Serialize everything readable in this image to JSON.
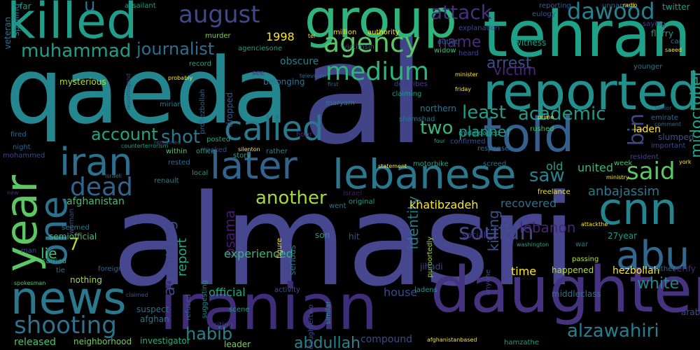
{
  "words": [
    "almasri",
    "al",
    "qaeda",
    "iranian",
    "daughter",
    "tehran",
    "reported",
    "group",
    "told",
    "killed",
    "lebanese",
    "later",
    "news",
    "cnn",
    "year",
    "iran",
    "abu",
    "one",
    "shooting",
    "medium",
    "called",
    "agency",
    "dead",
    "said",
    "august",
    "dawood",
    "soufan",
    "alzawahiri",
    "muhammad",
    "journalist",
    "academic",
    "least",
    "bin",
    "account",
    "shot",
    "another",
    "attack",
    "midoctober",
    "arrest",
    "victim",
    "habib",
    "abdullah",
    "white",
    "two",
    "planner",
    "according",
    "killing",
    "lebanon",
    "identity",
    "osama",
    "report",
    "saw",
    "recovered",
    "united",
    "anbajassim",
    "khatibzadeh",
    "official",
    "house",
    "experienced",
    "afghanistan",
    "time",
    "name",
    "lie",
    "7",
    "1998",
    "laden",
    "old",
    "hezbollah",
    "compound",
    "released",
    "neighborhood",
    "investigator",
    "leader",
    "far",
    "u",
    "assailant",
    "mysterious",
    "reporting",
    "spelling",
    "twitter",
    "murder",
    "million",
    "authority",
    "explanation",
    "witness",
    "flurry",
    "agenciesone",
    "obscure",
    "victimsin",
    "widow",
    "record",
    "heard",
    "younger",
    "unnamed",
    "eulogy",
    "saying",
    "outlet",
    "car",
    "saeed",
    "belonging",
    "dropped",
    "prohezbollah",
    "first",
    "maryam",
    "describes",
    "friday",
    "claiming",
    "northern",
    "shamshad",
    "prime",
    "senior",
    "emirate",
    "comment",
    "rushed",
    "confirmed",
    "middleaged",
    "hour",
    "four",
    "response",
    "statement",
    "motorbike",
    "screed",
    "important",
    "resident",
    "week",
    "ministry",
    "york",
    "freelance",
    "passing",
    "renault",
    "asked",
    "posted",
    "rather",
    "story",
    "silenton",
    "within",
    "office",
    "counterterrorism",
    "fired",
    "night",
    "mohammed",
    "rested",
    "local",
    "israel",
    "israeli",
    "went",
    "original",
    "new",
    "woman",
    "seemed",
    "semiofficial",
    "son",
    "hit",
    "social",
    "purportedly",
    "attackthe",
    "27year",
    "verify",
    "washington",
    "war",
    "man",
    "carried",
    "foreign",
    "tie",
    "nothing",
    "spokesman",
    "claimed",
    "suspect",
    "afghan",
    "refused",
    "suggesting",
    "scene",
    "citing",
    "similar",
    "anyone",
    "middleclass",
    "either",
    "arab",
    "ladens",
    "daughtertwo",
    "figure",
    "serious",
    "activity",
    "jihadi",
    "happened",
    "hamzathe",
    "afghanistanbased",
    "slumped",
    "see",
    "veteran",
    "minister",
    "radio",
    "television",
    "probably",
    "tel",
    "miriam",
    "reportingand",
    "remained"
  ]
}
